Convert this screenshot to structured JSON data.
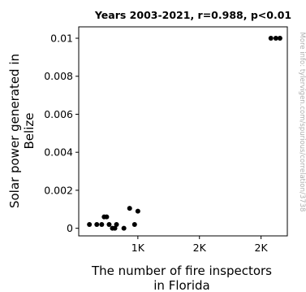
{
  "chart_data": {
    "type": "scatter",
    "title": "Years 2003-2021, r=0.988, p<0.01",
    "xlabel": "The number of fire inspectors in Florida",
    "xlabel_lines": [
      "The number of fire inspectors",
      "in Florida"
    ],
    "ylabel": "Solar power generated in Belize",
    "ylabel_lines": [
      "Solar power generated in",
      "Belize"
    ],
    "xlim": [
      280,
      2820
    ],
    "ylim": [
      -0.0004,
      0.0106
    ],
    "x_ticks": [
      {
        "value": 1000,
        "label": "1K"
      },
      {
        "value": 1750,
        "label": "2K"
      },
      {
        "value": 2500,
        "label": "2K"
      }
    ],
    "y_ticks": [
      {
        "value": 0,
        "label": "0"
      },
      {
        "value": 0.002,
        "label": "0.002"
      },
      {
        "value": 0.004,
        "label": "0.004"
      },
      {
        "value": 0.006,
        "label": "0.006"
      },
      {
        "value": 0.008,
        "label": "0.008"
      },
      {
        "value": 0.01,
        "label": "0.01"
      }
    ],
    "grid": false,
    "point_color": "#000000",
    "points": [
      {
        "x": 410,
        "y": 0.0002
      },
      {
        "x": 500,
        "y": 0.0002
      },
      {
        "x": 560,
        "y": 0.0002
      },
      {
        "x": 590,
        "y": 0.0006
      },
      {
        "x": 620,
        "y": 0.0006
      },
      {
        "x": 650,
        "y": 0.0002
      },
      {
        "x": 690,
        "y": 0.0
      },
      {
        "x": 720,
        "y": 0.0
      },
      {
        "x": 740,
        "y": 0.0002
      },
      {
        "x": 830,
        "y": 0.0
      },
      {
        "x": 900,
        "y": 0.00105
      },
      {
        "x": 960,
        "y": 0.0002
      },
      {
        "x": 1000,
        "y": 0.0009
      },
      {
        "x": 2620,
        "y": 0.01
      },
      {
        "x": 2680,
        "y": 0.01
      },
      {
        "x": 2730,
        "y": 0.01
      }
    ]
  },
  "side_note": "More info: tylervigen.com/spurious/correlation/3738"
}
